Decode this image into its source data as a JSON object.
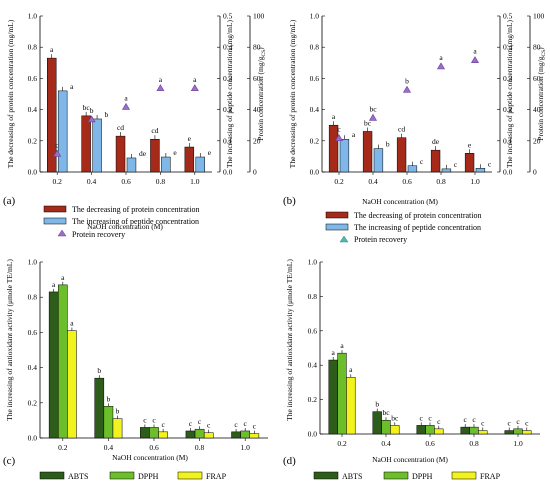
{
  "figure": {
    "panels": [
      {
        "panel_label": "(a)",
        "xlabel": "NaOH concentration (M)",
        "ylabel_left": "The decreasing of protein concentration (mg/mL)",
        "ylabel_right1": "The increasing of peptide concentration (mg/mL)",
        "ylabel_right2": "Protein concentration (mg/g",
        "ylabel_right2_sub": "CS",
        "ylabel_right2_end": ")"
      },
      {
        "panel_label": "(b)",
        "xlabel": "NaOH concentration (M)",
        "ylabel_left": "The decreasing of protein concentration (mg/mL)",
        "ylabel_right1": "The increasing of peptide concentration (mg/mL)",
        "ylabel_right2": "Protein concentration (mg/g",
        "ylabel_right2_sub": "CS",
        "ylabel_right2_end": ")"
      },
      {
        "panel_label": "(c)",
        "xlabel": "NaOH concentration (M)",
        "ylabel": "The increasing of antioxidant activity (μmole TE/mL)"
      },
      {
        "panel_label": "(d)",
        "xlabel": "NaOH concentration (M)",
        "ylabel": "The increasing of antioxidant activity (μmole TE/mL)"
      }
    ],
    "legend_top": [
      {
        "label": "The decreasing of protein concentration",
        "color": "#a52a1a"
      },
      {
        "label": "The increasing of peptide concentration",
        "color": "#7fb8e8"
      },
      {
        "label": "Protein recovery",
        "color": "#9b6fc4"
      }
    ],
    "legend_bottom": [
      {
        "label": "ABTS",
        "color": "#2e5c1a"
      },
      {
        "label": "DPPH",
        "color": "#6cbf2a"
      },
      {
        "label": "FRAP",
        "color": "#f2f21e"
      }
    ]
  },
  "chart_data": [
    {
      "type": "bar",
      "panel": "(a)",
      "categories": [
        "0.2",
        "0.4",
        "0.6",
        "0.8",
        "1.0"
      ],
      "xlabel": "NaOH concentration (M)",
      "ylabel": "The decreasing of protein concentration (mg/mL)",
      "ylim": [
        0,
        1.0
      ],
      "yticks": [
        "0.0",
        "0.2",
        "0.4",
        "0.6",
        "0.8",
        "1.0"
      ],
      "y2lim": [
        0,
        0.5
      ],
      "y2ticks": [
        "0.0",
        "0.1",
        "0.2",
        "0.3",
        "0.4",
        "0.5"
      ],
      "y3lim": [
        0,
        100
      ],
      "y3ticks": [
        "0",
        "20",
        "40",
        "60",
        "80",
        "100"
      ],
      "series": [
        {
          "name": "The decreasing of protein concentration",
          "axis": "left",
          "values": [
            0.73,
            0.36,
            0.23,
            0.21,
            0.16
          ],
          "labels": [
            "a",
            "bc",
            "cd",
            "cd",
            "e"
          ]
        },
        {
          "name": "The increasing of peptide concentration",
          "axis": "right1",
          "values": [
            0.26,
            0.17,
            0.045,
            0.048,
            0.048
          ],
          "labels": [
            "a",
            "b",
            "de",
            "e",
            "e"
          ]
        },
        {
          "name": "Protein recovery",
          "axis": "right2",
          "type": "scatter",
          "values": [
            12,
            34,
            42,
            54,
            54
          ],
          "labels": [
            "c",
            "b",
            "a",
            "a",
            "a"
          ]
        }
      ]
    },
    {
      "type": "bar",
      "panel": "(b)",
      "categories": [
        "0.2",
        "0.4",
        "0.6",
        "0.8",
        "1.0"
      ],
      "xlabel": "NaOH concentration (M)",
      "ylabel": "The decreasing of protein concentration (mg/mL)",
      "ylim": [
        0,
        1.0
      ],
      "yticks": [
        "0.0",
        "0.2",
        "0.4",
        "0.6",
        "0.8",
        "1.0"
      ],
      "y2lim": [
        0,
        0.5
      ],
      "y2ticks": [
        "0.0",
        "0.1",
        "0.2",
        "0.3",
        "0.4",
        "0.5"
      ],
      "y3lim": [
        0,
        100
      ],
      "y3ticks": [
        "0",
        "20",
        "40",
        "60",
        "80",
        "100"
      ],
      "series": [
        {
          "name": "The decreasing of protein concentration",
          "axis": "left",
          "values": [
            0.3,
            0.26,
            0.22,
            0.14,
            0.12
          ],
          "labels": [
            "a",
            "bc",
            "cd",
            "de",
            "e"
          ]
        },
        {
          "name": "The increasing of peptide concentration",
          "axis": "right1",
          "values": [
            0.105,
            0.075,
            0.02,
            0.01,
            0.012
          ],
          "labels": [
            "a",
            "b",
            "c",
            "c",
            "c"
          ]
        },
        {
          "name": "Protein recovery",
          "axis": "right2",
          "type": "scatter",
          "values": [
            22,
            35,
            53,
            68,
            72
          ],
          "labels": [
            "c",
            "bc",
            "b",
            "a",
            "a"
          ]
        }
      ]
    },
    {
      "type": "bar",
      "panel": "(c)",
      "categories": [
        "0.2",
        "0.4",
        "0.6",
        "0.8",
        "1.0"
      ],
      "xlabel": "NaOH concentration (M)",
      "ylabel": "The increasing of antioxidant activity (μmole TE/mL)",
      "ylim": [
        0,
        1.0
      ],
      "yticks": [
        "0.0",
        "0.2",
        "0.4",
        "0.6",
        "0.8",
        "1.0"
      ],
      "series": [
        {
          "name": "ABTS",
          "values": [
            0.83,
            0.34,
            0.06,
            0.04,
            0.035
          ],
          "labels": [
            "a",
            "b",
            "c",
            "c",
            "c"
          ]
        },
        {
          "name": "DPPH",
          "values": [
            0.87,
            0.18,
            0.06,
            0.05,
            0.04
          ],
          "labels": [
            "a",
            "b",
            "c",
            "c",
            "c"
          ]
        },
        {
          "name": "FRAP",
          "values": [
            0.61,
            0.11,
            0.035,
            0.03,
            0.025
          ],
          "labels": [
            "a",
            "b",
            "c",
            "c",
            "c"
          ]
        }
      ]
    },
    {
      "type": "bar",
      "panel": "(d)",
      "categories": [
        "0.2",
        "0.4",
        "0.6",
        "0.8",
        "1.0"
      ],
      "xlabel": "NaOH concentration (M)",
      "ylabel": "The increasing of antioxidant activity (μmole TE/mL)",
      "ylim": [
        0,
        1.0
      ],
      "yticks": [
        "0.0",
        "0.2",
        "0.4",
        "0.6",
        "0.8",
        "1.0"
      ],
      "series": [
        {
          "name": "ABTS",
          "values": [
            0.43,
            0.13,
            0.05,
            0.04,
            0.02
          ],
          "labels": [
            "a",
            "b",
            "c",
            "c",
            "c"
          ]
        },
        {
          "name": "DPPH",
          "values": [
            0.47,
            0.08,
            0.05,
            0.04,
            0.03
          ],
          "labels": [
            "a",
            "bc",
            "c",
            "c",
            "c"
          ]
        },
        {
          "name": "FRAP",
          "values": [
            0.33,
            0.05,
            0.03,
            0.02,
            0.02
          ],
          "labels": [
            "a",
            "bc",
            "c",
            "c",
            "c"
          ]
        }
      ]
    }
  ]
}
